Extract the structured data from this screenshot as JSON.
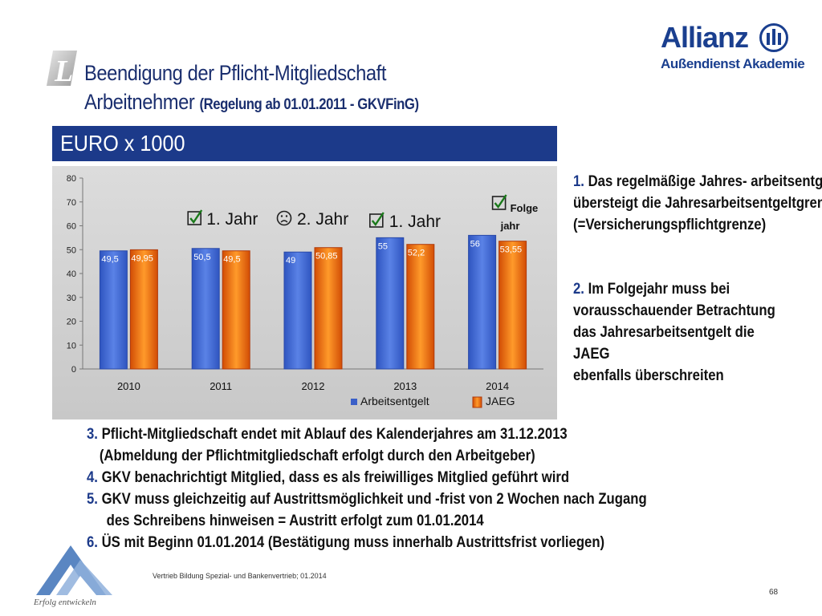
{
  "slide": {
    "title_line1": "Beendigung der Pflicht-Mitgliedschaft",
    "title_line2_main": "Arbeitnehmer",
    "title_line2_sub": "(Regelung ab 01.01.2011 - GKVFinG)",
    "banner": "EURO x 1000",
    "footer": "Vertrieb Bildung Spezial- und Bankenvertrieb; 01.2014",
    "page_number": "68",
    "section_letter": "L",
    "motto": "Erfolg entwickeln"
  },
  "brand": {
    "name": "Allianz",
    "sub": "Außendienst Akademie",
    "color": "#1a3f8f"
  },
  "chart_data": {
    "type": "bar",
    "categories": [
      "2010",
      "2011",
      "2012",
      "2013",
      "2014"
    ],
    "series": [
      {
        "name": "Arbeitsentgelt",
        "values": [
          49.5,
          50.5,
          49,
          55,
          56
        ],
        "labels": [
          "49,5",
          "50,5",
          "49",
          "55",
          "56"
        ],
        "color": "#3a5fc8"
      },
      {
        "name": "JAEG",
        "values": [
          49.95,
          49.5,
          50.85,
          52.2,
          53.55
        ],
        "labels": [
          "49,95",
          "49,5",
          "50,85",
          "52,2",
          "53,55"
        ],
        "color": "#f07a10"
      }
    ],
    "ylim": [
      0,
      80
    ],
    "yticks": [
      "0",
      "10",
      "20",
      "30",
      "40",
      "50",
      "60",
      "70",
      "80"
    ],
    "grid": false,
    "legend": "bottom-right",
    "annotations": [
      {
        "icon": "check",
        "text": "1. Jahr"
      },
      {
        "icon": "frown",
        "text": "2. Jahr"
      },
      {
        "icon": "check",
        "text": "1. Jahr"
      },
      {
        "icon": "check",
        "text_line1": "Folge",
        "text_line2": "jahr"
      }
    ]
  },
  "notes": {
    "right": [
      {
        "num": "1.",
        "lines": [
          "Das regelmäßige Jahres- arbeitsentgelt",
          "übersteigt die Jahresarbeitsentgeltgrenze",
          "(=Versicherungspflichtgrenze)"
        ]
      },
      {
        "num": "2.",
        "lines": [
          "Im Folgejahr muss bei",
          "vorausschauender Betrachtung",
          "das Jahresarbeitsentgelt die",
          "JAEG",
          "ebenfalls überschreiten"
        ]
      }
    ],
    "bottom": [
      {
        "num": "3.",
        "lines": [
          "Pflicht-Mitgliedschaft endet mit Ablauf des Kalenderjahres am 31.12.2013",
          "(Abmeldung der Pflichtmitgliedschaft erfolgt durch den Arbeitgeber)"
        ]
      },
      {
        "num": "4.",
        "lines": [
          "GKV benachrichtigt Mitglied, dass es als freiwilliges Mitglied geführt wird"
        ]
      },
      {
        "num": "5.",
        "lines": [
          "GKV muss gleichzeitig auf Austrittsmöglichkeit und -frist von 2 Wochen nach Zugang",
          "des Schreibens hinweisen = Austritt erfolgt zum 01.01.2014"
        ]
      },
      {
        "num": "6.",
        "lines": [
          "ÜS mit Beginn 01.01.2014 (Bestätigung muss innerhalb Austrittsfrist vorliegen)"
        ]
      }
    ]
  }
}
